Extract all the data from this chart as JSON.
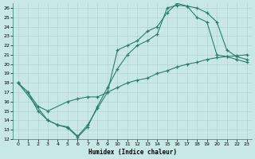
{
  "xlabel": "Humidex (Indice chaleur)",
  "xlim": [
    -0.5,
    23.5
  ],
  "ylim": [
    12,
    26.5
  ],
  "yticks": [
    12,
    13,
    14,
    15,
    16,
    17,
    18,
    19,
    20,
    21,
    22,
    23,
    24,
    25,
    26
  ],
  "xticks": [
    0,
    1,
    2,
    3,
    4,
    5,
    6,
    7,
    8,
    9,
    10,
    11,
    12,
    13,
    14,
    15,
    16,
    17,
    18,
    19,
    20,
    21,
    22,
    23
  ],
  "bg_color": "#c8e8e8",
  "line_color": "#2d7d6e",
  "grid_color": "#b0d0d0",
  "line1_x": [
    0,
    1,
    2,
    3,
    4,
    5,
    6,
    7,
    8,
    9,
    10,
    11,
    12,
    13,
    14,
    15,
    16,
    17,
    18,
    19,
    20,
    21,
    22,
    23
  ],
  "line1_y": [
    18,
    17,
    15,
    14,
    13.5,
    13.2,
    12.2,
    13.3,
    15.5,
    17.5,
    19.5,
    21.0,
    22.0,
    22.5,
    23.2,
    26.0,
    26.3,
    26.2,
    25.0,
    24.5,
    21.0,
    20.8,
    20.5,
    20.2
  ],
  "line2_x": [
    0,
    3,
    4,
    5,
    6,
    7,
    8,
    9,
    10,
    11,
    12,
    13,
    14,
    15,
    16,
    17,
    18,
    19,
    20,
    21,
    22,
    23
  ],
  "line2_y": [
    18,
    14,
    13.5,
    13.3,
    12.3,
    13.5,
    15.3,
    17.0,
    21.5,
    22.0,
    22.5,
    23.5,
    24.0,
    25.5,
    26.5,
    26.2,
    26.0,
    25.5,
    24.5,
    21.5,
    20.8,
    20.5
  ],
  "line3_x": [
    0,
    1,
    2,
    3,
    5,
    6,
    7,
    8,
    9,
    10,
    11,
    12,
    13,
    14,
    15,
    16,
    17,
    18,
    19,
    20,
    21,
    22,
    23
  ],
  "line3_y": [
    18,
    17,
    15.5,
    15.0,
    16.0,
    16.3,
    16.5,
    16.5,
    17.0,
    17.5,
    18.0,
    18.3,
    18.5,
    19.0,
    19.3,
    19.7,
    20.0,
    20.2,
    20.5,
    20.7,
    20.8,
    20.9,
    21.0
  ]
}
